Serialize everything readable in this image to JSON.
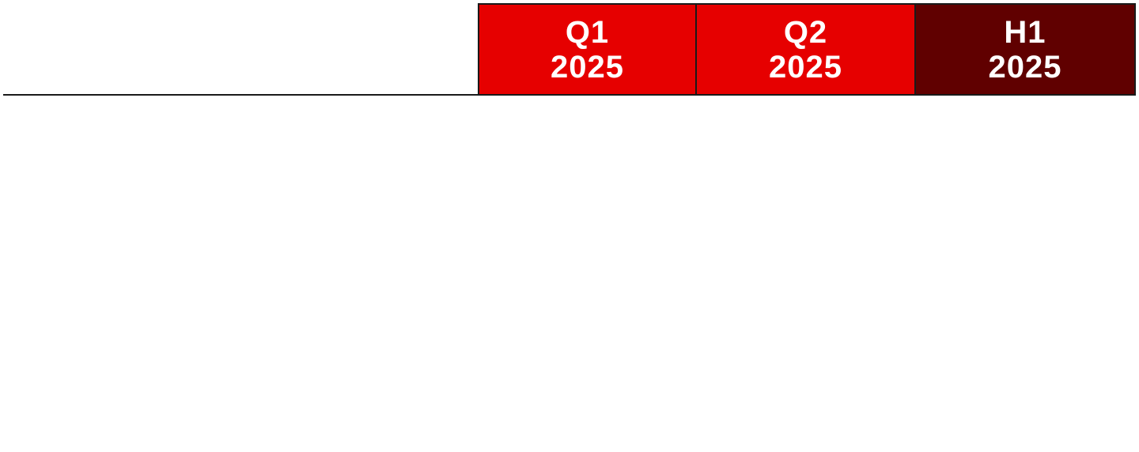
{
  "table": {
    "header": {
      "columns": [
        {
          "line1": "Q1",
          "line2": "2025",
          "color": "#e60000"
        },
        {
          "line1": "Q2",
          "line2": "2025",
          "color": "#e60000"
        },
        {
          "line1": "H1",
          "line2": "2025",
          "color": "#600000"
        }
      ]
    }
  }
}
